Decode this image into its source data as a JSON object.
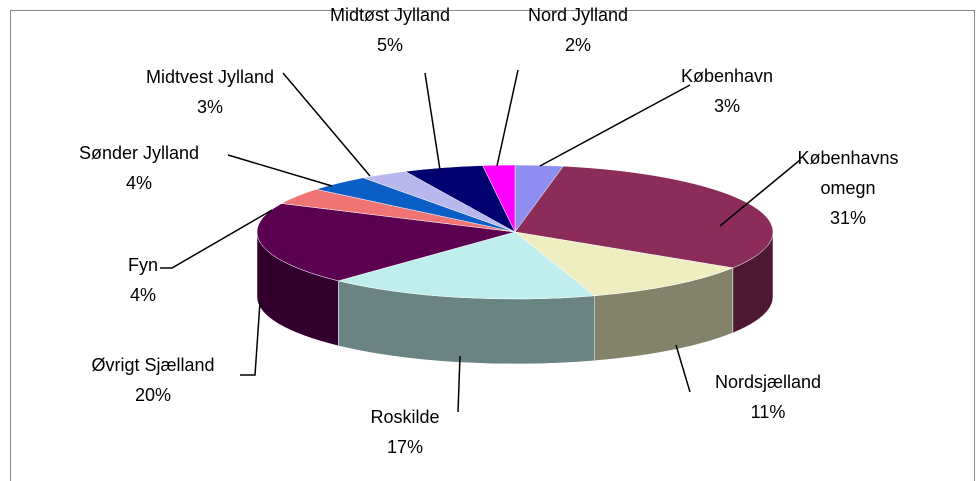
{
  "chart_data": {
    "type": "pie3d",
    "categories": [
      "København",
      "Københavns omegn",
      "Nordsjælland",
      "Roskilde",
      "Øvrigt Sjælland",
      "Fyn",
      "Sønder Jylland",
      "Midtvest Jylland",
      "Midtøst Jylland",
      "Nord Jylland"
    ],
    "values": [
      3,
      31,
      11,
      17,
      20,
      4,
      4,
      3,
      5,
      2
    ],
    "value_labels": [
      "3%",
      "31%",
      "11%",
      "17%",
      "20%",
      "4%",
      "4%",
      "3%",
      "5%",
      "2%"
    ],
    "colors": [
      "#8e8ef0",
      "#8b2c5a",
      "#efeec0",
      "#c0eeee",
      "#5c0052",
      "#f07474",
      "#0b5ec6",
      "#b8b8ee",
      "#000070",
      "#ff00ff"
    ]
  }
}
